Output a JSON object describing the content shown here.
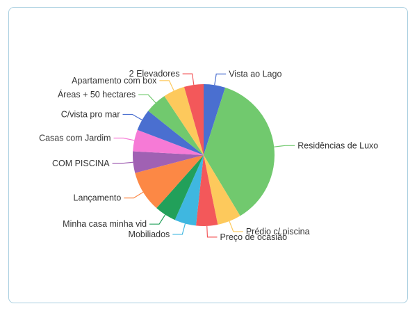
{
  "chart_data": {
    "type": "pie",
    "title": "",
    "legend": "none",
    "start_angle_deg": 0,
    "slices": [
      {
        "label": "Vista ao Lago",
        "value": 5,
        "color": "#4a6fd0"
      },
      {
        "label": "Residências de Luxo",
        "value": 37,
        "color": "#71c96e"
      },
      {
        "label": "Prédio c/ piscina",
        "value": 5.5,
        "color": "#fdc95c"
      },
      {
        "label": "Preço de ocasião",
        "value": 5,
        "color": "#f3585a"
      },
      {
        "label": "Mobiliados",
        "value": 5,
        "color": "#3fb7e0"
      },
      {
        "label": "Minha casa minha vid",
        "value": 5,
        "color": "#22a05a"
      },
      {
        "label": "Lançamento",
        "value": 9.5,
        "color": "#fc8845"
      },
      {
        "label": "COM PISCINA",
        "value": 5,
        "color": "#a061b3"
      },
      {
        "label": "Casas com Jardim",
        "value": 5,
        "color": "#f67ad6"
      },
      {
        "label": "C/vista pro mar",
        "value": 5,
        "color": "#4a6fd0"
      },
      {
        "label": "Áreas + 50 hectares",
        "value": 5,
        "color": "#71c96e"
      },
      {
        "label": "Apartamento com box",
        "value": 5,
        "color": "#fdc95c"
      },
      {
        "label": "2 Elevadores",
        "value": 4.5,
        "color": "#f3585a"
      }
    ]
  }
}
